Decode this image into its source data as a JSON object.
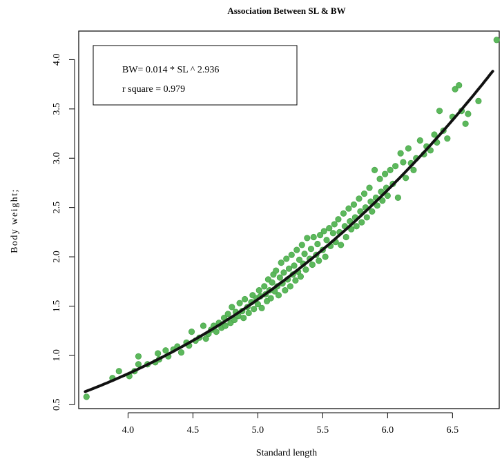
{
  "chart_data": {
    "type": "scatter",
    "title": "Association Between SL & BW",
    "xlabel": "Standard length",
    "ylabel": "Body weight;",
    "xlim": [
      3.62,
      6.86
    ],
    "ylim": [
      0.46,
      4.29
    ],
    "xticks": [
      "4.0",
      "4.5",
      "5.0",
      "5.5",
      "6.0",
      "6.5"
    ],
    "yticks": [
      "0.5",
      "1.0",
      "1.5",
      "2.0",
      "2.5",
      "3.0",
      "3.5",
      "4.0"
    ],
    "legend": {
      "placement": "top-left",
      "line1": "BW= 0.014 * SL ^ 2.936",
      "line2": "r square =  0.979"
    },
    "point_color": "#5cb85c",
    "line_color": "#111111",
    "fit": {
      "a": 0.0139,
      "b": 2.936
    },
    "points": [
      [
        3.68,
        0.58
      ],
      [
        3.88,
        0.77
      ],
      [
        3.93,
        0.84
      ],
      [
        4.01,
        0.79
      ],
      [
        4.05,
        0.84
      ],
      [
        4.08,
        0.91
      ],
      [
        4.08,
        0.99
      ],
      [
        4.15,
        0.91
      ],
      [
        4.21,
        0.93
      ],
      [
        4.23,
        1.02
      ],
      [
        4.24,
        0.96
      ],
      [
        4.29,
        1.05
      ],
      [
        4.31,
        0.99
      ],
      [
        4.35,
        1.06
      ],
      [
        4.38,
        1.09
      ],
      [
        4.41,
        1.03
      ],
      [
        4.45,
        1.13
      ],
      [
        4.47,
        1.1
      ],
      [
        4.49,
        1.24
      ],
      [
        4.52,
        1.15
      ],
      [
        4.55,
        1.18
      ],
      [
        4.58,
        1.3
      ],
      [
        4.6,
        1.17
      ],
      [
        4.62,
        1.22
      ],
      [
        4.64,
        1.26
      ],
      [
        4.66,
        1.3
      ],
      [
        4.68,
        1.24
      ],
      [
        4.7,
        1.33
      ],
      [
        4.72,
        1.28
      ],
      [
        4.74,
        1.38
      ],
      [
        4.75,
        1.3
      ],
      [
        4.77,
        1.42
      ],
      [
        4.79,
        1.33
      ],
      [
        4.8,
        1.49
      ],
      [
        4.82,
        1.36
      ],
      [
        4.83,
        1.44
      ],
      [
        4.85,
        1.4
      ],
      [
        4.86,
        1.53
      ],
      [
        4.88,
        1.45
      ],
      [
        4.89,
        1.38
      ],
      [
        4.9,
        1.57
      ],
      [
        4.92,
        1.49
      ],
      [
        4.93,
        1.43
      ],
      [
        4.95,
        1.54
      ],
      [
        4.96,
        1.61
      ],
      [
        4.97,
        1.47
      ],
      [
        4.99,
        1.58
      ],
      [
        5.0,
        1.52
      ],
      [
        5.01,
        1.66
      ],
      [
        5.02,
        1.6
      ],
      [
        5.03,
        1.48
      ],
      [
        5.05,
        1.7
      ],
      [
        5.06,
        1.62
      ],
      [
        5.07,
        1.55
      ],
      [
        5.08,
        1.77
      ],
      [
        5.09,
        1.66
      ],
      [
        5.1,
        1.58
      ],
      [
        5.11,
        1.74
      ],
      [
        5.12,
        1.82
      ],
      [
        5.13,
        1.65
      ],
      [
        5.14,
        1.86
      ],
      [
        5.15,
        1.7
      ],
      [
        5.16,
        1.61
      ],
      [
        5.17,
        1.79
      ],
      [
        5.18,
        1.94
      ],
      [
        5.19,
        1.73
      ],
      [
        5.2,
        1.84
      ],
      [
        5.21,
        1.66
      ],
      [
        5.22,
        1.98
      ],
      [
        5.23,
        1.77
      ],
      [
        5.24,
        1.88
      ],
      [
        5.25,
        1.7
      ],
      [
        5.26,
        2.02
      ],
      [
        5.27,
        1.82
      ],
      [
        5.28,
        1.91
      ],
      [
        5.29,
        1.76
      ],
      [
        5.3,
        2.07
      ],
      [
        5.31,
        1.85
      ],
      [
        5.32,
        1.97
      ],
      [
        5.33,
        1.8
      ],
      [
        5.34,
        2.12
      ],
      [
        5.35,
        1.93
      ],
      [
        5.36,
        2.03
      ],
      [
        5.37,
        1.87
      ],
      [
        5.38,
        2.19
      ],
      [
        5.4,
        1.98
      ],
      [
        5.41,
        2.08
      ],
      [
        5.42,
        1.92
      ],
      [
        5.43,
        2.2
      ],
      [
        5.45,
        2.02
      ],
      [
        5.46,
        2.13
      ],
      [
        5.47,
        1.96
      ],
      [
        5.48,
        2.22
      ],
      [
        5.5,
        2.07
      ],
      [
        5.51,
        2.26
      ],
      [
        5.52,
        2.0
      ],
      [
        5.53,
        2.17
      ],
      [
        5.55,
        2.29
      ],
      [
        5.56,
        2.11
      ],
      [
        5.58,
        2.24
      ],
      [
        5.59,
        2.33
      ],
      [
        5.6,
        2.15
      ],
      [
        5.62,
        2.38
      ],
      [
        5.63,
        2.25
      ],
      [
        5.64,
        2.12
      ],
      [
        5.66,
        2.44
      ],
      [
        5.67,
        2.31
      ],
      [
        5.68,
        2.2
      ],
      [
        5.7,
        2.49
      ],
      [
        5.71,
        2.36
      ],
      [
        5.72,
        2.28
      ],
      [
        5.74,
        2.53
      ],
      [
        5.75,
        2.4
      ],
      [
        5.76,
        2.31
      ],
      [
        5.78,
        2.59
      ],
      [
        5.79,
        2.46
      ],
      [
        5.8,
        2.35
      ],
      [
        5.82,
        2.64
      ],
      [
        5.83,
        2.5
      ],
      [
        5.84,
        2.4
      ],
      [
        5.86,
        2.7
      ],
      [
        5.87,
        2.56
      ],
      [
        5.88,
        2.46
      ],
      [
        5.9,
        2.88
      ],
      [
        5.91,
        2.6
      ],
      [
        5.92,
        2.52
      ],
      [
        5.94,
        2.79
      ],
      [
        5.95,
        2.66
      ],
      [
        5.96,
        2.57
      ],
      [
        5.98,
        2.84
      ],
      [
        5.99,
        2.7
      ],
      [
        6.0,
        2.62
      ],
      [
        6.02,
        2.88
      ],
      [
        6.04,
        2.74
      ],
      [
        6.06,
        2.92
      ],
      [
        6.08,
        2.6
      ],
      [
        6.1,
        3.05
      ],
      [
        6.12,
        2.96
      ],
      [
        6.14,
        2.8
      ],
      [
        6.16,
        3.1
      ],
      [
        6.18,
        2.95
      ],
      [
        6.2,
        2.88
      ],
      [
        6.22,
        3.0
      ],
      [
        6.25,
        3.18
      ],
      [
        6.28,
        3.04
      ],
      [
        6.3,
        3.12
      ],
      [
        6.33,
        3.08
      ],
      [
        6.36,
        3.24
      ],
      [
        6.38,
        3.16
      ],
      [
        6.4,
        3.48
      ],
      [
        6.43,
        3.28
      ],
      [
        6.46,
        3.2
      ],
      [
        6.5,
        3.42
      ],
      [
        6.52,
        3.7
      ],
      [
        6.55,
        3.74
      ],
      [
        6.57,
        3.48
      ],
      [
        6.6,
        3.35
      ],
      [
        6.62,
        3.45
      ],
      [
        6.7,
        3.58
      ],
      [
        6.84,
        4.2
      ]
    ]
  }
}
